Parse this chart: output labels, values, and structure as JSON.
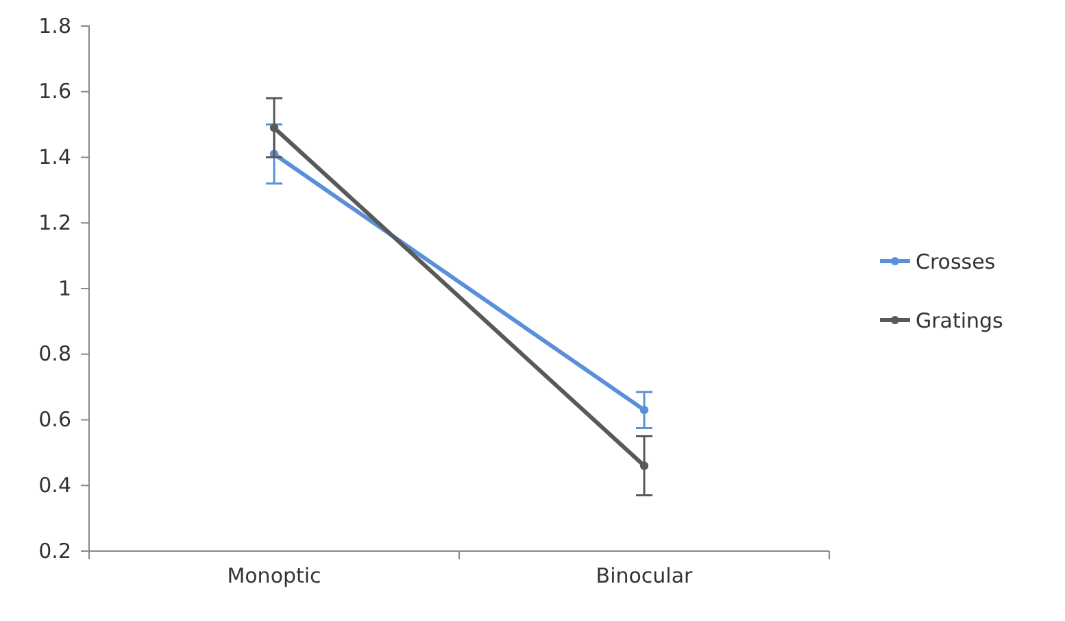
{
  "chart_data": {
    "type": "line",
    "categories": [
      "Monoptic",
      "Binocular"
    ],
    "series": [
      {
        "name": "Crosses",
        "color": "#5b8fd9",
        "values": [
          1.41,
          0.63
        ],
        "errors": [
          0.09,
          0.055
        ]
      },
      {
        "name": "Gratings",
        "color": "#595959",
        "values": [
          1.49,
          0.46
        ],
        "errors": [
          0.09,
          0.09
        ]
      }
    ],
    "ylim": [
      0.2,
      1.8
    ],
    "yticks": [
      0.2,
      0.4,
      0.6,
      0.8,
      1,
      1.2,
      1.4,
      1.6,
      1.8
    ],
    "grid": false,
    "legend": "right",
    "marker": "circle",
    "line_style": "solid"
  }
}
